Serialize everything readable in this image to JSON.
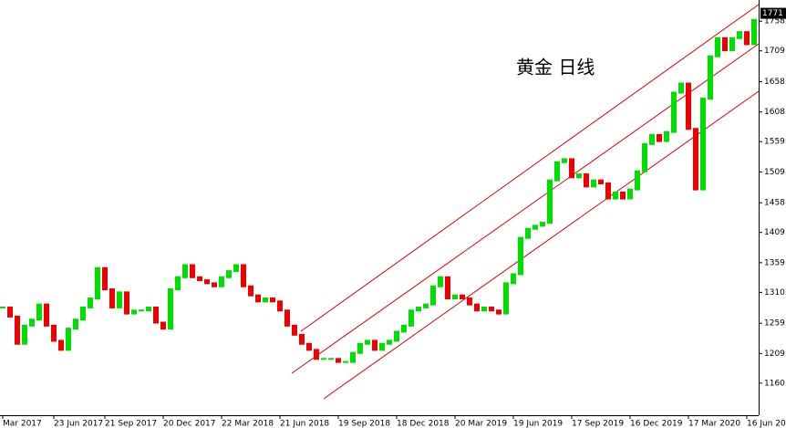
{
  "chart_data": {
    "type": "candlestick",
    "title": "黄金 日线",
    "categories": [
      "Mar 2017",
      null,
      null,
      null,
      null,
      null,
      null,
      "23 Jun 2017",
      null,
      null,
      null,
      null,
      null,
      null,
      "21 Sep 2017",
      null,
      null,
      null,
      null,
      null,
      null,
      null,
      "20 Dec 2017",
      null,
      null,
      null,
      null,
      null,
      null,
      null,
      "22 Mar 2018",
      null,
      null,
      null,
      null,
      null,
      null,
      null,
      "21 Jun 2018",
      null,
      null,
      null,
      null,
      null,
      null,
      null,
      "19 Sep 2018",
      null,
      null,
      null,
      null,
      null,
      null,
      null,
      "18 Dec 2018",
      null,
      null,
      null,
      null,
      null,
      null,
      null,
      "20 Mar 2019",
      null,
      null,
      null,
      null,
      null,
      null,
      null,
      "19 Jun 2019",
      null,
      null,
      null,
      null,
      null,
      null,
      null,
      "17 Sep 2019",
      null,
      null,
      null,
      null,
      null,
      null,
      null,
      "16 Dec 2019",
      null,
      null,
      null,
      null,
      null,
      null,
      null,
      "17 Mar 2020",
      null,
      null,
      null,
      null,
      null,
      null,
      null,
      "16 Jun 20",
      null
    ],
    "values": [
      1285,
      1270,
      1225,
      1255,
      1265,
      1290,
      1255,
      1230,
      1215,
      1250,
      1265,
      1285,
      1300,
      1350,
      1315,
      1285,
      1310,
      1275,
      1280,
      1280,
      1285,
      1260,
      1250,
      1315,
      1335,
      1355,
      1335,
      1330,
      1325,
      1320,
      1335,
      1345,
      1355,
      1320,
      1305,
      1295,
      1300,
      1295,
      1280,
      1255,
      1240,
      1225,
      1215,
      1200,
      1200,
      1200,
      1195,
      1195,
      1210,
      1225,
      1230,
      1215,
      1225,
      1230,
      1245,
      1255,
      1280,
      1285,
      1290,
      1320,
      1335,
      1300,
      1305,
      1300,
      1290,
      1280,
      1285,
      1280,
      1275,
      1325,
      1340,
      1400,
      1415,
      1420,
      1425,
      1495,
      1525,
      1530,
      1500,
      1505,
      1485,
      1495,
      1490,
      1465,
      1475,
      1465,
      1480,
      1510,
      1555,
      1570,
      1560,
      1575,
      1640,
      1655,
      1580,
      1480,
      1630,
      1700,
      1730,
      1710,
      1730,
      1740,
      1720,
      1760
    ],
    "up_color": "#00dd00",
    "down_color": "#ee0000",
    "ylim": [
      1107,
      1793
    ],
    "yticks": [
      {
        "value": 1160,
        "label": "1160."
      },
      {
        "value": 1209,
        "label": "1209."
      },
      {
        "value": 1259,
        "label": "1259."
      },
      {
        "value": 1310,
        "label": "1310."
      },
      {
        "value": 1359,
        "label": "1359."
      },
      {
        "value": 1409,
        "label": "1409."
      },
      {
        "value": 1458,
        "label": "1458."
      },
      {
        "value": 1509,
        "label": "1509."
      },
      {
        "value": 1559,
        "label": "1559."
      },
      {
        "value": 1608,
        "label": "1608."
      },
      {
        "value": 1658,
        "label": "1658."
      },
      {
        "value": 1709,
        "label": "1709."
      },
      {
        "value": 1758,
        "label": "1758."
      }
    ],
    "last_price": 1771
  }
}
